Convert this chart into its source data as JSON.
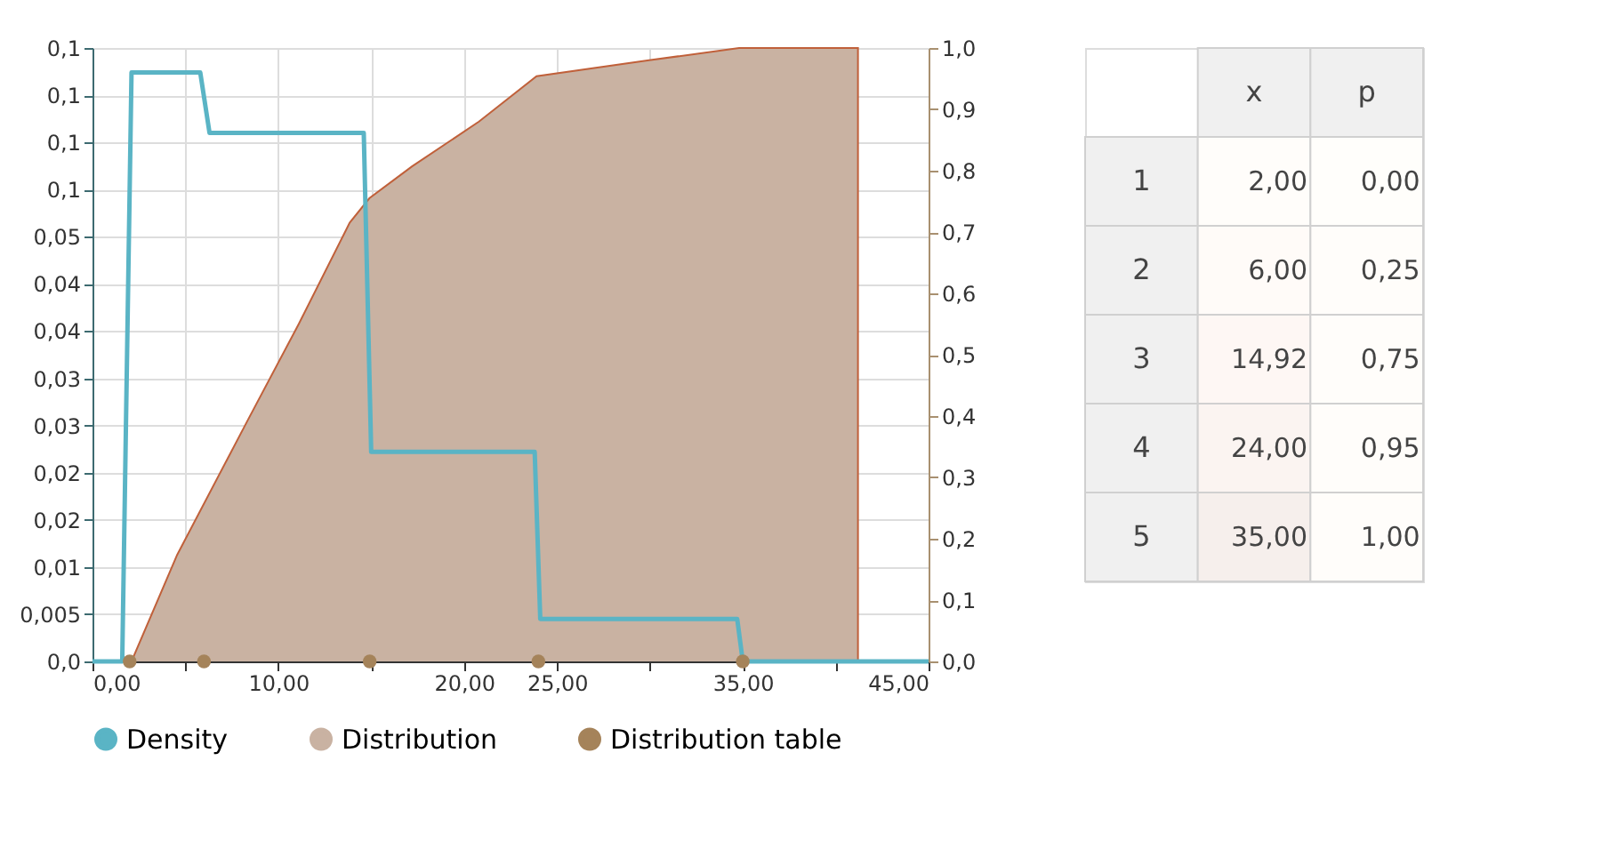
{
  "chart_data": [
    {
      "type": "line",
      "xlim": [
        0,
        45
      ],
      "xticks": [
        {
          "value": 0,
          "label": "0,00"
        },
        {
          "value": 5,
          "label": null
        },
        {
          "value": 10,
          "label": "10,00"
        },
        {
          "value": 15,
          "label": null
        },
        {
          "value": 20,
          "label": "20,00"
        },
        {
          "value": 25,
          "label": "25,00"
        },
        {
          "value": 30,
          "label": null
        },
        {
          "value": 35,
          "label": "35,00"
        },
        {
          "value": 40,
          "label": null
        },
        {
          "value": 45,
          "label": "45,00"
        }
      ],
      "ylim": [
        0,
        0.065
      ],
      "yticks": [
        {
          "value": 0,
          "label": "0,0"
        },
        {
          "value": 0.005,
          "label": "0,005"
        },
        {
          "value": 0.01,
          "label": "0,01"
        },
        {
          "value": 0.015,
          "label": "0,02"
        },
        {
          "value": 0.02,
          "label": "0,02"
        },
        {
          "value": 0.025,
          "label": "0,03"
        },
        {
          "value": 0.03,
          "label": "0,03"
        },
        {
          "value": 0.035,
          "label": "0,04"
        },
        {
          "value": 0.04,
          "label": "0,04"
        },
        {
          "value": 0.045,
          "label": "0,05"
        },
        {
          "value": 0.05,
          "label": "0,1"
        },
        {
          "value": 0.055,
          "label": "0,1"
        },
        {
          "value": 0.06,
          "label": "0,1"
        },
        {
          "value": 0.065,
          "label": "0,1"
        }
      ],
      "y2lim": [
        0,
        1
      ],
      "y2ticks": [
        {
          "value": 0,
          "label": "0,0"
        },
        {
          "value": 0.1,
          "label": "0,1"
        },
        {
          "value": 0.2,
          "label": "0,2"
        },
        {
          "value": 0.3,
          "label": "0,3"
        },
        {
          "value": 0.4,
          "label": "0,4"
        },
        {
          "value": 0.5,
          "label": "0,5"
        },
        {
          "value": 0.6,
          "label": "0,6"
        },
        {
          "value": 0.7,
          "label": "0,7"
        },
        {
          "value": 0.8,
          "label": "0,8"
        },
        {
          "value": 0.9,
          "label": "0,9"
        },
        {
          "value": 1,
          "label": "1,0"
        }
      ],
      "grid": true,
      "legend": "bottom",
      "series": [
        {
          "name": "Density",
          "type": "line",
          "color": "#5ab4c5",
          "x": [
            0,
            1.6,
            2.1,
            5.8,
            6.3,
            14.6,
            15.0,
            23.8,
            24.1,
            34.7,
            35,
            45
          ],
          "values": [
            0,
            0,
            0.0624,
            0.0624,
            0.056,
            0.056,
            0.0222,
            0.0222,
            0.0045,
            0.0045,
            0,
            0
          ]
        },
        {
          "name": "Distribution",
          "type": "area",
          "axis": "y2",
          "color": "#c9b2a2",
          "x": [
            0,
            2.1,
            4.56,
            8.37,
            11.1,
            13.84,
            14.9,
            17.2,
            20.8,
            23.9,
            29.95,
            34.8,
            41.2,
            41.2
          ],
          "values": [
            0,
            0,
            0.174,
            0.394,
            0.55,
            0.715,
            0.755,
            0.807,
            0.88,
            0.954,
            0.98,
            1.0,
            1.0,
            0
          ]
        },
        {
          "name": "Distribution table",
          "type": "scatter",
          "marker": "circle",
          "color": "#a5835a",
          "x": [
            2,
            6,
            14.92,
            24,
            35
          ],
          "values": [
            0,
            0,
            0,
            0,
            0
          ]
        }
      ]
    },
    {
      "type": "heatmap",
      "categories": [
        "x",
        "p"
      ],
      "cells": [
        [
          2,
          0
        ],
        [
          6,
          0.25
        ],
        [
          14.92,
          0.75
        ],
        [
          24,
          0.95
        ],
        [
          35,
          1
        ]
      ],
      "y_categories": [
        "1",
        "2",
        "3",
        "4",
        "5"
      ],
      "cell_labels": [
        [
          "2,00",
          "0,00"
        ],
        [
          "6,00",
          "0,25"
        ],
        [
          "14,92",
          "0,75"
        ],
        [
          "24,00",
          "0,95"
        ],
        [
          "35,00",
          "1,00"
        ]
      ]
    }
  ]
}
